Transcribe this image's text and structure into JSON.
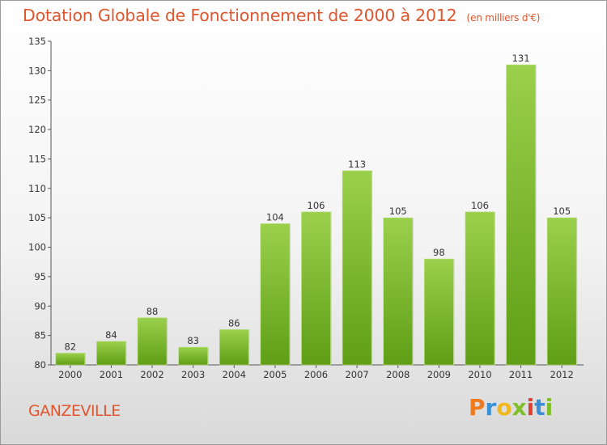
{
  "header": {
    "title": "Dotation Globale de Fonctionnement de 2000 à 2012",
    "subtitle": "(en milliers d'€)"
  },
  "footer": {
    "city": "GANZEVILLE",
    "logo_text": "Proxiti",
    "logo_colors": [
      "#f07a1e",
      "#3a8fd6",
      "#f0b81e",
      "#7fbf2a",
      "#e0412e",
      "#3a8fd6",
      "#7fbf2a"
    ]
  },
  "colors": {
    "bar_light": "#9bd04c",
    "bar_dark": "#5f9e16",
    "title": "#e0562e",
    "axis": "#555555"
  },
  "chart_data": {
    "type": "bar",
    "categories": [
      "2000",
      "2001",
      "2002",
      "2003",
      "2004",
      "2005",
      "2006",
      "2007",
      "2008",
      "2009",
      "2010",
      "2011",
      "2012"
    ],
    "values": [
      82,
      84,
      88,
      83,
      86,
      104,
      106,
      113,
      105,
      98,
      106,
      131,
      105
    ],
    "ylim": [
      80,
      135
    ],
    "yticks": [
      80,
      85,
      90,
      95,
      100,
      105,
      110,
      115,
      120,
      125,
      130,
      135
    ],
    "grid": false,
    "data_labels": true,
    "legend": "none"
  }
}
